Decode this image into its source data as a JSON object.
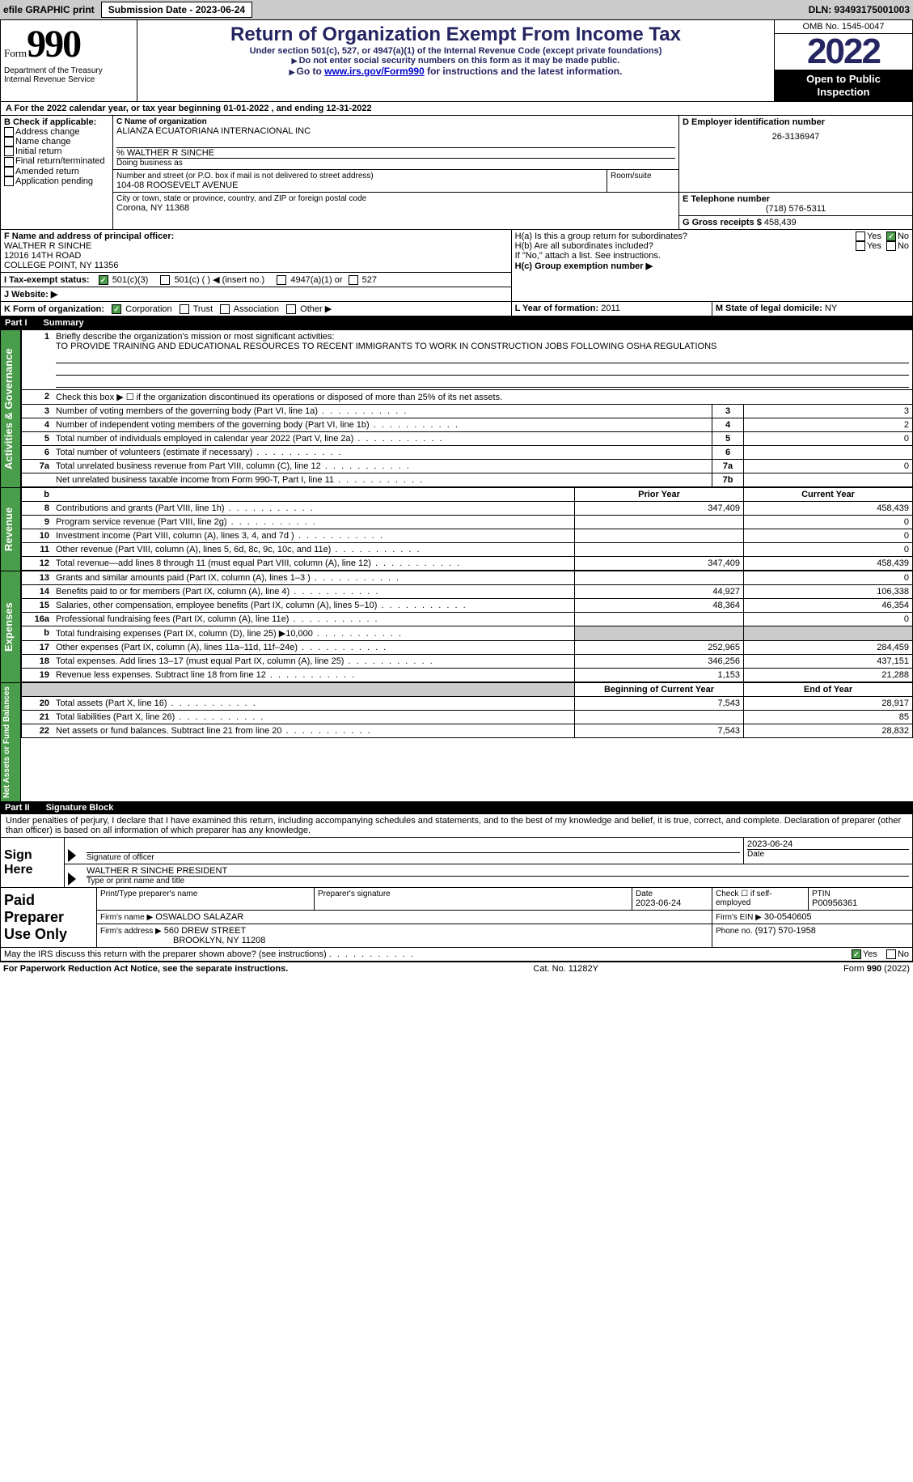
{
  "top_bar": {
    "efile_label": "efile GRAPHIC print",
    "submission_label": "Submission Date - 2023-06-24",
    "dln_label": "DLN: 93493175001003"
  },
  "header": {
    "form_word": "Form",
    "form_num": "990",
    "dept": "Department of the Treasury",
    "irs": "Internal Revenue Service",
    "main_title": "Return of Organization Exempt From Income Tax",
    "sub1": "Under section 501(c), 527, or 4947(a)(1) of the Internal Revenue Code (except private foundations)",
    "sub2": "Do not enter social security numbers on this form as it may be made public.",
    "goto_prefix": "Go to ",
    "goto_link": "www.irs.gov/Form990",
    "goto_suffix": " for instructions and the latest information.",
    "omb": "OMB No. 1545-0047",
    "year": "2022",
    "open1": "Open to Public",
    "open2": "Inspection"
  },
  "cal_year": {
    "prefix": "A For the 2022 calendar year, or tax year beginning ",
    "begin": "01-01-2022",
    "mid": " , and ending ",
    "end": "12-31-2022"
  },
  "box_b": {
    "label": "B Check if applicable:",
    "opts": [
      "Address change",
      "Name change",
      "Initial return",
      "Final return/terminated",
      "Amended return",
      "Application pending"
    ]
  },
  "box_c": {
    "name_label": "C Name of organization",
    "name": "ALIANZA ECUATORIANA INTERNACIONAL INC",
    "care_of": "% WALTHER R SINCHE",
    "dba_label": "Doing business as",
    "street_label": "Number and street (or P.O. box if mail is not delivered to street address)",
    "room_label": "Room/suite",
    "street": "104-08 ROOSEVELT AVENUE",
    "city_label": "City or town, state or province, country, and ZIP or foreign postal code",
    "city": "Corona, NY  11368"
  },
  "box_d": {
    "label": "D Employer identification number",
    "value": "26-3136947"
  },
  "box_e": {
    "label": "E Telephone number",
    "value": "(718) 576-5311"
  },
  "box_g": {
    "label": "G Gross receipts $",
    "value": "458,439"
  },
  "box_f": {
    "label": "F Name and address of principal officer:",
    "name": "WALTHER R SINCHE",
    "addr1": "12016 14TH ROAD",
    "addr2": "COLLEGE POINT, NY  11356"
  },
  "box_h": {
    "ha": "H(a)  Is this a group return for subordinates?",
    "hb": "H(b)  Are all subordinates included?",
    "hb_note": "If \"No,\" attach a list. See instructions.",
    "hc": "H(c)  Group exemption number ▶",
    "yes": "Yes",
    "no": "No"
  },
  "box_i": {
    "label": "I   Tax-exempt status:",
    "opt1": "501(c)(3)",
    "opt2": "501(c) (   ) ◀ (insert no.)",
    "opt3": "4947(a)(1) or",
    "opt4": "527"
  },
  "box_j": {
    "label": "J   Website: ▶"
  },
  "box_k": {
    "label": "K Form of organization:",
    "corp": "Corporation",
    "trust": "Trust",
    "assoc": "Association",
    "other": "Other ▶"
  },
  "box_l": {
    "label": "L Year of formation:",
    "value": "2011"
  },
  "box_m": {
    "label": "M State of legal domicile:",
    "value": "NY"
  },
  "part1": {
    "label": "Part I",
    "title": "Summary"
  },
  "summary": {
    "line1_label": "Briefly describe the organization's mission or most significant activities:",
    "line1_text": "TO PROVIDE TRAINING AND EDUCATIONAL RESOURCES TO RECENT IMMIGRANTS TO WORK IN CONSTRUCTION JOBS FOLLOWING OSHA REGULATIONS",
    "line2": "Check this box ▶ ☐ if the organization discontinued its operations or disposed of more than 25% of its net assets.",
    "rows_ag": [
      {
        "n": "3",
        "desc": "Number of voting members of the governing body (Part VI, line 1a)",
        "box": "3",
        "val": "3"
      },
      {
        "n": "4",
        "desc": "Number of independent voting members of the governing body (Part VI, line 1b)",
        "box": "4",
        "val": "2"
      },
      {
        "n": "5",
        "desc": "Total number of individuals employed in calendar year 2022 (Part V, line 2a)",
        "box": "5",
        "val": "0"
      },
      {
        "n": "6",
        "desc": "Total number of volunteers (estimate if necessary)",
        "box": "6",
        "val": ""
      },
      {
        "n": "7a",
        "desc": "Total unrelated business revenue from Part VIII, column (C), line 12",
        "box": "7a",
        "val": "0"
      },
      {
        "n": "",
        "desc": "Net unrelated business taxable income from Form 990-T, Part I, line 11",
        "box": "7b",
        "val": ""
      }
    ],
    "prior_label": "Prior Year",
    "current_label": "Current Year",
    "rows_rev": [
      {
        "n": "8",
        "desc": "Contributions and grants (Part VIII, line 1h)",
        "prior": "347,409",
        "curr": "458,439"
      },
      {
        "n": "9",
        "desc": "Program service revenue (Part VIII, line 2g)",
        "prior": "",
        "curr": "0"
      },
      {
        "n": "10",
        "desc": "Investment income (Part VIII, column (A), lines 3, 4, and 7d )",
        "prior": "",
        "curr": "0"
      },
      {
        "n": "11",
        "desc": "Other revenue (Part VIII, column (A), lines 5, 6d, 8c, 9c, 10c, and 11e)",
        "prior": "",
        "curr": "0"
      },
      {
        "n": "12",
        "desc": "Total revenue—add lines 8 through 11 (must equal Part VIII, column (A), line 12)",
        "prior": "347,409",
        "curr": "458,439"
      }
    ],
    "rows_exp": [
      {
        "n": "13",
        "desc": "Grants and similar amounts paid (Part IX, column (A), lines 1–3 )",
        "prior": "",
        "curr": "0"
      },
      {
        "n": "14",
        "desc": "Benefits paid to or for members (Part IX, column (A), line 4)",
        "prior": "44,927",
        "curr": "106,338"
      },
      {
        "n": "15",
        "desc": "Salaries, other compensation, employee benefits (Part IX, column (A), lines 5–10)",
        "prior": "48,364",
        "curr": "46,354"
      },
      {
        "n": "16a",
        "desc": "Professional fundraising fees (Part IX, column (A), line 11e)",
        "prior": "",
        "curr": "0"
      },
      {
        "n": "b",
        "desc": "Total fundraising expenses (Part IX, column (D), line 25) ▶10,000",
        "prior": "SHADED",
        "curr": "SHADED"
      },
      {
        "n": "17",
        "desc": "Other expenses (Part IX, column (A), lines 11a–11d, 11f–24e)",
        "prior": "252,965",
        "curr": "284,459"
      },
      {
        "n": "18",
        "desc": "Total expenses. Add lines 13–17 (must equal Part IX, column (A), line 25)",
        "prior": "346,256",
        "curr": "437,151"
      },
      {
        "n": "19",
        "desc": "Revenue less expenses. Subtract line 18 from line 12",
        "prior": "1,153",
        "curr": "21,288"
      }
    ],
    "begin_label": "Beginning of Current Year",
    "end_label": "End of Year",
    "rows_net": [
      {
        "n": "20",
        "desc": "Total assets (Part X, line 16)",
        "prior": "7,543",
        "curr": "28,917"
      },
      {
        "n": "21",
        "desc": "Total liabilities (Part X, line 26)",
        "prior": "",
        "curr": "85"
      },
      {
        "n": "22",
        "desc": "Net assets or fund balances. Subtract line 21 from line 20",
        "prior": "7,543",
        "curr": "28,832"
      }
    ]
  },
  "vert_labels": {
    "ag": "Activities & Governance",
    "rev": "Revenue",
    "exp": "Expenses",
    "net": "Net Assets or Fund Balances"
  },
  "part2": {
    "label": "Part II",
    "title": "Signature Block"
  },
  "penalties": "Under penalties of perjury, I declare that I have examined this return, including accompanying schedules and statements, and to the best of my knowledge and belief, it is true, correct, and complete. Declaration of preparer (other than officer) is based on all information of which preparer has any knowledge.",
  "sign": {
    "here": "Sign Here",
    "sig_label": "Signature of officer",
    "date_label": "Date",
    "date": "2023-06-24",
    "name": "WALTHER R SINCHE PRESIDENT",
    "name_label": "Type or print name and title"
  },
  "preparer": {
    "title": "Paid Preparer Use Only",
    "print_label": "Print/Type preparer's name",
    "sig_label": "Preparer's signature",
    "date_label": "Date",
    "date": "2023-06-24",
    "check_label": "Check ☐ if self-employed",
    "ptin_label": "PTIN",
    "ptin": "P00956361",
    "firm_name_label": "Firm's name     ▶",
    "firm_name": "OSWALDO SALAZAR",
    "firm_ein_label": "Firm's EIN ▶",
    "firm_ein": "30-0540605",
    "firm_addr_label": "Firm's address ▶",
    "firm_addr1": "560 DREW STREET",
    "firm_addr2": "BROOKLYN, NY  11208",
    "phone_label": "Phone no.",
    "phone": "(917) 570-1958"
  },
  "discuss": {
    "text": "May the IRS discuss this return with the preparer shown above? (see instructions)",
    "yes": "Yes",
    "no": "No"
  },
  "footer": {
    "left": "For Paperwork Reduction Act Notice, see the separate instructions.",
    "mid": "Cat. No. 11282Y",
    "right": "Form 990 (2022)"
  },
  "colors": {
    "title": "#252562",
    "green": "#4a9d4a",
    "gray": "#cccccc"
  }
}
